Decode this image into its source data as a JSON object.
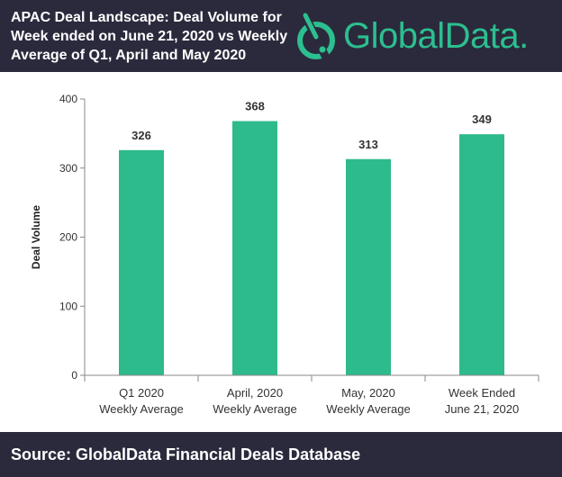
{
  "header": {
    "title": "APAC Deal Landscape: Deal Volume for Week ended on June 21, 2020 vs Weekly Average of Q1, April and May 2020",
    "brand": "GlobalData."
  },
  "footer": {
    "source": "Source: GlobalData Financial Deals Database"
  },
  "colors": {
    "bar": "#2dba8c",
    "header_bg": "#2b2a3d",
    "brand": "#2cbf8f"
  },
  "chart_data": {
    "type": "bar",
    "title": "APAC Deal Landscape: Deal Volume for Week ended on June 21, 2020 vs Weekly Average of Q1, April and May 2020",
    "categories": [
      [
        "Q1 2020",
        "Weekly Average"
      ],
      [
        "April, 2020",
        "Weekly Average"
      ],
      [
        "May, 2020",
        "Weekly Average"
      ],
      [
        "Week Ended",
        "June 21, 2020"
      ]
    ],
    "values": [
      326,
      368,
      313,
      349
    ],
    "xlabel": "",
    "ylabel": "Deal Volume",
    "ylim": [
      0,
      400
    ],
    "yticks": [
      0,
      100,
      200,
      300,
      400
    ],
    "grid": false
  }
}
